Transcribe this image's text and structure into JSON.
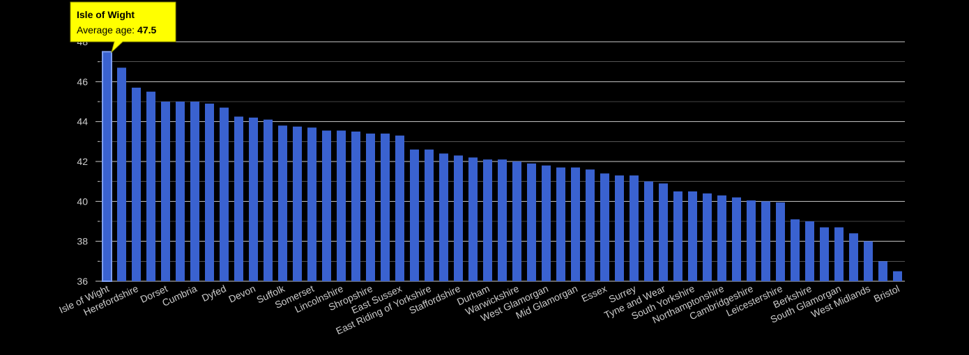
{
  "chart_data": {
    "type": "bar",
    "color": "#3a62d0",
    "highlight_color": "#7f9ff0",
    "categories": [
      "Isle of Wight",
      null,
      "Herefordshire",
      null,
      "Dorset",
      null,
      "Cumbria",
      null,
      "Dyfed",
      null,
      "Devon",
      null,
      "Suffolk",
      null,
      "Somerset",
      null,
      "Lincolnshire",
      null,
      "Shropshire",
      null,
      "East Sussex",
      null,
      "East Riding of Yorkshire",
      null,
      "Staffordshire",
      null,
      "Durham",
      null,
      "Warwickshire",
      null,
      "West Glamorgan",
      null,
      "Mid Glamorgan",
      null,
      "Essex",
      null,
      "Surrey",
      null,
      "Tyne and Wear",
      null,
      "South Yorkshire",
      null,
      "Northamptonshire",
      null,
      "Cambridgeshire",
      null,
      "Leicestershire",
      null,
      "Berkshire",
      null,
      "South Glamorgan",
      null,
      "West Midlands",
      null,
      "Bristol"
    ],
    "values": [
      47.5,
      46.7,
      45.7,
      45.5,
      45.0,
      45.0,
      45.0,
      44.9,
      44.7,
      44.25,
      44.2,
      44.1,
      43.8,
      43.75,
      43.7,
      43.55,
      43.55,
      43.5,
      43.4,
      43.4,
      43.3,
      42.6,
      42.6,
      42.4,
      42.3,
      42.2,
      42.1,
      42.1,
      42.0,
      41.9,
      41.8,
      41.7,
      41.7,
      41.6,
      41.4,
      41.3,
      41.3,
      41.0,
      40.9,
      40.5,
      40.5,
      40.4,
      40.3,
      40.2,
      40.05,
      40.0,
      39.95,
      39.1,
      39.0,
      38.7,
      38.7,
      38.4,
      38.0,
      37.0,
      36.5
    ],
    "ylim": [
      36,
      48
    ],
    "yticks": [
      36,
      38,
      40,
      42,
      44,
      46,
      48
    ],
    "minor_yticks": [
      37,
      39,
      41,
      43,
      45,
      47
    ],
    "grid": true,
    "tooltip": {
      "index": 0,
      "label": "Average age:"
    }
  }
}
